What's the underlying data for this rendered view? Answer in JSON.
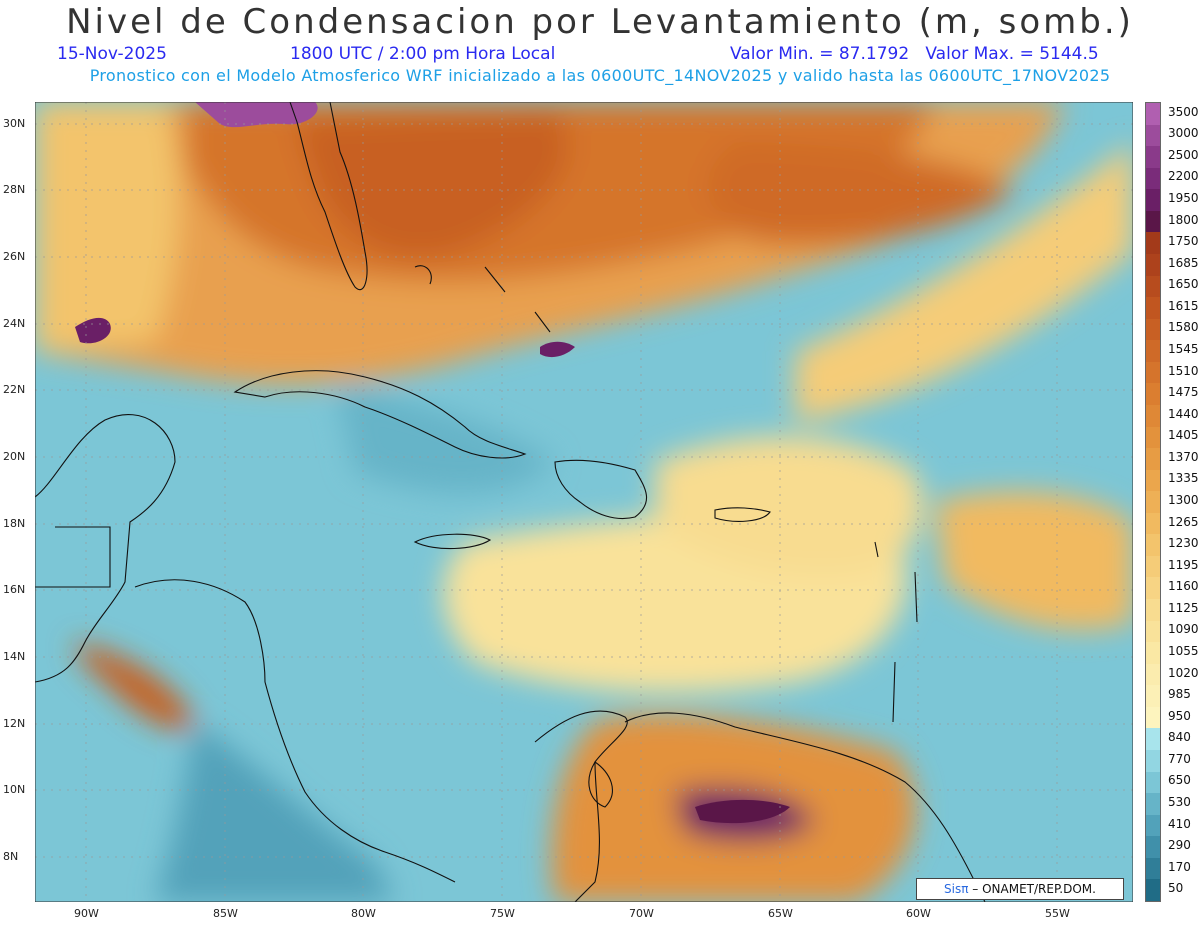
{
  "title": "Nivel de Condensacion por Levantamiento (m, somb.)",
  "date": "15-Nov-2025",
  "time": "1800 UTC / 2:00 pm Hora Local",
  "minmax": "Valor Min. = 87.1792   Valor Max. = 5144.5",
  "forecast": "Pronostico con el Modelo Atmosferico WRF inicializado a las 0600UTC_14NOV2025 y valido hasta las  0600UTC_17NOV2025",
  "lat_labels": [
    "30N",
    "28N",
    "26N",
    "24N",
    "22N",
    "20N",
    "18N",
    "16N",
    "14N",
    "12N",
    "10N",
    "8N"
  ],
  "lon_labels": [
    "90W",
    "85W",
    "80W",
    "75W",
    "70W",
    "65W",
    "60W",
    "55W"
  ],
  "legend": [
    {
      "label": "3500",
      "color": "#b05fb0"
    },
    {
      "label": "3000",
      "color": "#9c4c9c"
    },
    {
      "label": "2500",
      "color": "#8a3a8a"
    },
    {
      "label": "2200",
      "color": "#7a2c7a"
    },
    {
      "label": "1950",
      "color": "#6a1f66"
    },
    {
      "label": "1800",
      "color": "#5a1648"
    },
    {
      "label": "1750",
      "color": "#a33a1a"
    },
    {
      "label": "1685",
      "color": "#ad421c"
    },
    {
      "label": "1650",
      "color": "#b74c1e"
    },
    {
      "label": "1615",
      "color": "#c15620"
    },
    {
      "label": "1580",
      "color": "#c86024"
    },
    {
      "label": "1545",
      "color": "#cf6a28"
    },
    {
      "label": "1510",
      "color": "#d5742c"
    },
    {
      "label": "1475",
      "color": "#db7e30"
    },
    {
      "label": "1440",
      "color": "#df8836"
    },
    {
      "label": "1405",
      "color": "#e3923c"
    },
    {
      "label": "1370",
      "color": "#e79c44"
    },
    {
      "label": "1335",
      "color": "#eba64c"
    },
    {
      "label": "1300",
      "color": "#eeb056"
    },
    {
      "label": "1265",
      "color": "#f1ba60"
    },
    {
      "label": "1230",
      "color": "#f3c46c"
    },
    {
      "label": "1195",
      "color": "#f5cc78"
    },
    {
      "label": "1160",
      "color": "#f7d484"
    },
    {
      "label": "1125",
      "color": "#f8dc90"
    },
    {
      "label": "1090",
      "color": "#f9e29a"
    },
    {
      "label": "1055",
      "color": "#fae8a4"
    },
    {
      "label": "1020",
      "color": "#fbecae"
    },
    {
      "label": "985",
      "color": "#fcf0b6"
    },
    {
      "label": "950",
      "color": "#fdf4be"
    },
    {
      "label": "840",
      "color": "#a8e4ec"
    },
    {
      "label": "770",
      "color": "#92d6e2"
    },
    {
      "label": "650",
      "color": "#7cc6d6"
    },
    {
      "label": "530",
      "color": "#66b4c8"
    },
    {
      "label": "410",
      "color": "#52a2ba"
    },
    {
      "label": "290",
      "color": "#4090aa"
    },
    {
      "label": "170",
      "color": "#307e98"
    },
    {
      "label": "50",
      "color": "#206c86"
    }
  ],
  "credit_brand": "Sisπ",
  "credit_text": " – ONAMET/REP.DOM."
}
